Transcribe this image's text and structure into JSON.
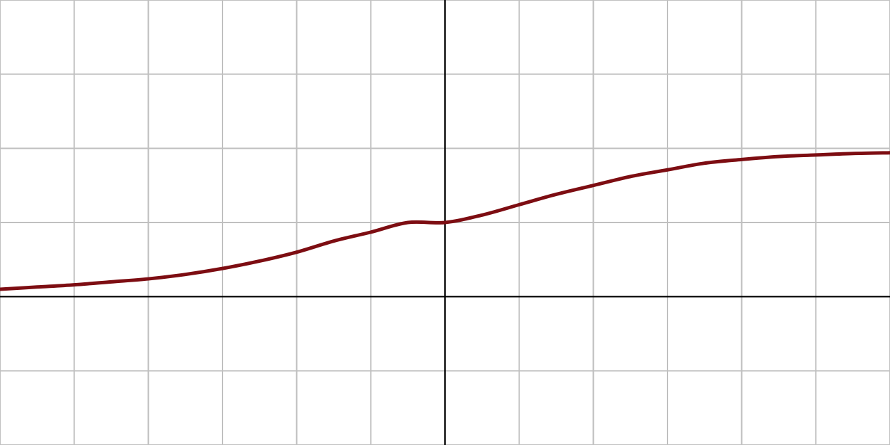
{
  "chart_data": {
    "type": "line",
    "title": "",
    "xlabel": "",
    "ylabel": "",
    "xlim": [
      -6,
      6
    ],
    "ylim": [
      -2,
      4
    ],
    "grid": true,
    "grid_step": 1,
    "axes_through_origin": true,
    "colors": {
      "background": "#ffffff",
      "grid": "#c0c0c0",
      "axes": "#000000",
      "series": "#7d0d12"
    },
    "series": [
      {
        "x": [
          -6,
          -5.5,
          -5,
          -4.5,
          -4,
          -3.5,
          -3,
          -2.5,
          -2,
          -1.5,
          -1,
          -0.5,
          0,
          0.5,
          1,
          1.5,
          2,
          2.5,
          3,
          3.5,
          4,
          4.5,
          5,
          5.5,
          6
        ],
        "y": [
          0.1,
          0.13,
          0.16,
          0.2,
          0.24,
          0.3,
          0.38,
          0.48,
          0.6,
          0.75,
          0.87,
          1.0,
          1.0,
          1.1,
          1.24,
          1.38,
          1.5,
          1.62,
          1.71,
          1.8,
          1.85,
          1.89,
          1.91,
          1.93,
          1.94
        ]
      }
    ]
  }
}
